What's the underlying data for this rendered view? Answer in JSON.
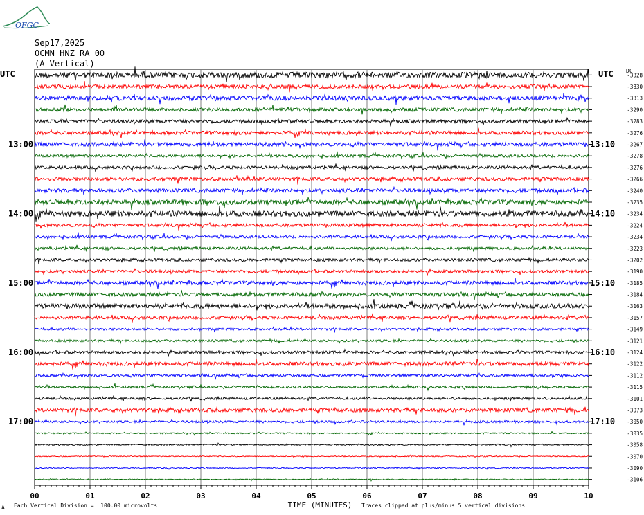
{
  "header": {
    "logo_text": "OFGC",
    "date": "Sep17,2025",
    "station": "OCMN HNZ RA 00",
    "component": "(A Vertical)",
    "left_tz": "UTC",
    "right_tz": "UTC",
    "dc_label": "DC"
  },
  "footer": {
    "vertical_division": "Each Vertical Division =  100.00 microvolts",
    "clip_note": "Traces clipped at plus/minus 5 vertical divisions",
    "marker": "A"
  },
  "colors": {
    "cycle": [
      "#000000",
      "#ff0000",
      "#0000ff",
      "#006600"
    ],
    "grid": "#808080"
  },
  "chart_data": {
    "type": "line",
    "title": "OCMN HNZ RA 00 (A Vertical) Sep17,2025",
    "xlabel": "TIME (MINUTES)",
    "xlim": [
      0,
      10
    ],
    "x_ticks": [
      "00",
      "01",
      "02",
      "03",
      "04",
      "05",
      "06",
      "07",
      "08",
      "09",
      "10"
    ],
    "rows": 36,
    "rows_per_hour": 6,
    "left_time_labels": [
      {
        "row": 6,
        "label": "13:00"
      },
      {
        "row": 12,
        "label": "14:00"
      },
      {
        "row": 18,
        "label": "15:00"
      },
      {
        "row": 24,
        "label": "16:00"
      },
      {
        "row": 30,
        "label": "17:00"
      }
    ],
    "right_time_labels": [
      {
        "row": 6,
        "label": "13:10"
      },
      {
        "row": 12,
        "label": "14:10"
      },
      {
        "row": 18,
        "label": "15:10"
      },
      {
        "row": 24,
        "label": "16:10"
      },
      {
        "row": 30,
        "label": "17:10"
      }
    ],
    "dc_offsets": [
      -3328,
      -3330,
      -3313,
      -3290,
      -3283,
      -3276,
      -3267,
      -3278,
      -3276,
      -3266,
      -3240,
      -3235,
      -3234,
      -3224,
      -3234,
      -3223,
      -3202,
      -3190,
      -3185,
      -3184,
      -3163,
      -3157,
      -3149,
      -3121,
      -3124,
      -3122,
      -3112,
      -3115,
      -3101,
      -3073,
      -3050,
      -3035,
      -3058,
      -3070,
      -3090,
      -3106
    ],
    "amplitude": [
      0.9,
      0.6,
      0.7,
      0.55,
      0.5,
      0.55,
      0.6,
      0.45,
      0.45,
      0.55,
      0.6,
      0.75,
      0.85,
      0.5,
      0.45,
      0.4,
      0.45,
      0.45,
      0.6,
      0.55,
      0.7,
      0.5,
      0.35,
      0.35,
      0.45,
      0.6,
      0.4,
      0.35,
      0.35,
      0.6,
      0.35,
      0.2,
      0.2,
      0.15,
      0.15,
      0.15
    ]
  }
}
